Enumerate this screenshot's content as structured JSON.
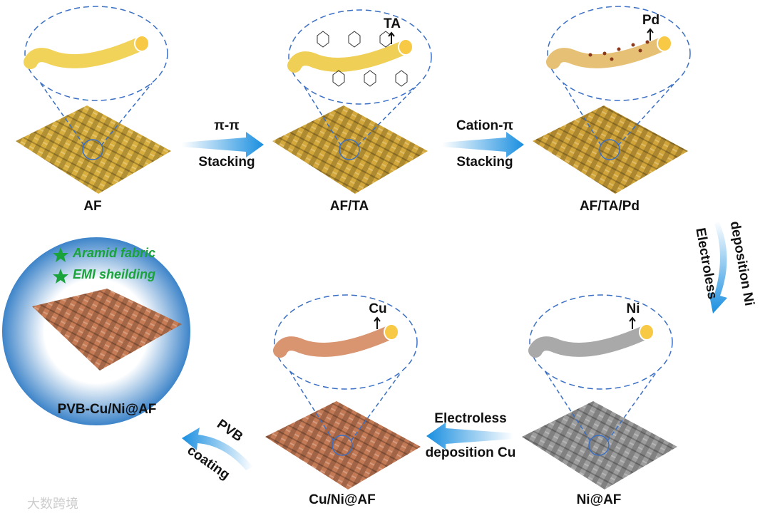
{
  "panels": [
    {
      "label": "AF"
    },
    {
      "label": "AF/TA",
      "marker": "TA"
    },
    {
      "label": "AF/TA/Pd",
      "marker": "Pd"
    },
    {
      "label": "Ni@AF",
      "marker": "Ni"
    },
    {
      "label": "Cu/Ni@AF",
      "marker": "Cu"
    }
  ],
  "arrows": [
    {
      "top": "π-π",
      "bottom": "Stacking"
    },
    {
      "top": "Cation-π",
      "bottom": "Stacking"
    },
    {
      "top": "Electroless",
      "bottom": "deposition Ni"
    },
    {
      "top": "Electroless",
      "bottom": "deposition Cu"
    },
    {
      "top": "PVB",
      "bottom": "coating"
    }
  ],
  "product": {
    "features": [
      "Aramid fabric",
      "EMI sheilding"
    ],
    "label": "PVB-Cu/Ni@AF"
  },
  "watermark": "大数跨境"
}
